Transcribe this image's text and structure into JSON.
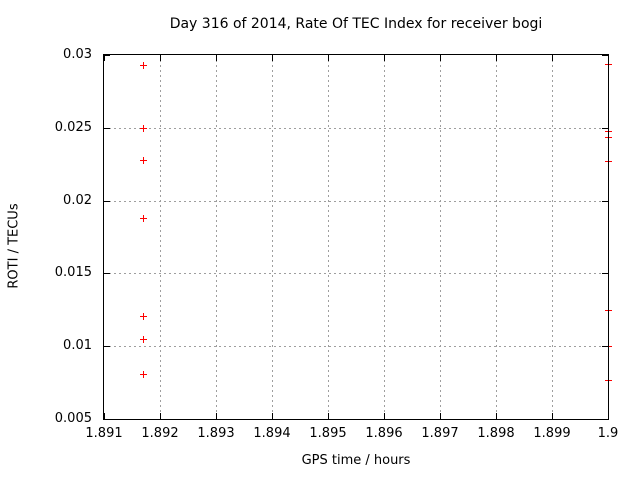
{
  "chart_data": {
    "type": "scatter",
    "title": "Day 316 of 2014, Rate Of TEC Index for receiver bogi",
    "xlabel": "GPS time / hours",
    "ylabel": "ROTI / TECUs",
    "xlim": [
      1.891,
      1.9
    ],
    "ylim": [
      0.005,
      0.03
    ],
    "xticks": [
      1.891,
      1.892,
      1.893,
      1.894,
      1.895,
      1.896,
      1.897,
      1.898,
      1.899,
      1.9
    ],
    "xtick_labels": [
      "1.891",
      "1.892",
      "1.893",
      "1.894",
      "1.895",
      "1.896",
      "1.897",
      "1.898",
      "1.899",
      "1.9"
    ],
    "yticks": [
      0.005,
      0.01,
      0.015,
      0.02,
      0.025,
      0.03
    ],
    "ytick_labels": [
      "0.005",
      "0.01",
      "0.015",
      "0.02",
      "0.025",
      "0.03"
    ],
    "grid": true,
    "legend": "none",
    "grid_color": "#9e9e9e",
    "axis_color": "#000000",
    "text_color": "#000000",
    "background_color": "#ffffff",
    "marker": {
      "shape": "plus",
      "color": "#ff0000",
      "size": 7
    },
    "series": [
      {
        "name": "ROTI",
        "points": [
          [
            1.8917,
            0.0293
          ],
          [
            1.8917,
            0.025
          ],
          [
            1.8917,
            0.0228
          ],
          [
            1.8917,
            0.0188
          ],
          [
            1.8917,
            0.0121
          ],
          [
            1.8917,
            0.0105
          ],
          [
            1.8917,
            0.0081
          ],
          [
            1.9,
            0.0294
          ],
          [
            1.9,
            0.0248
          ],
          [
            1.9,
            0.0244
          ],
          [
            1.9,
            0.0227
          ],
          [
            1.9,
            0.0125
          ],
          [
            1.9,
            0.01
          ],
          [
            1.9,
            0.0077
          ]
        ]
      }
    ]
  }
}
